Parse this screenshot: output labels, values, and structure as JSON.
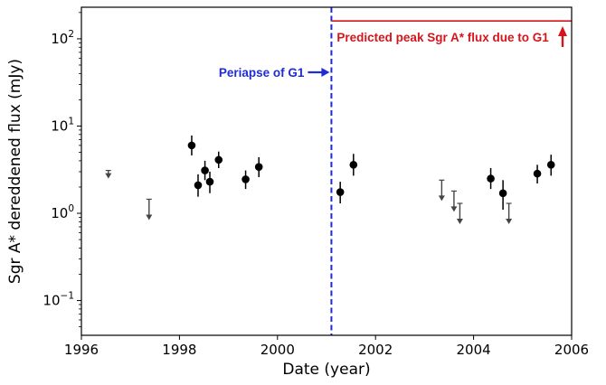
{
  "chart_data": {
    "type": "scatter",
    "xlabel": "Date (year)",
    "ylabel": "Sgr A* dereddened flux (mJy)",
    "xlim": [
      1996,
      2006
    ],
    "ylim": [
      0.04,
      230
    ],
    "yscale": "log",
    "xticks": [
      1996,
      1998,
      2000,
      2002,
      2004,
      2006
    ],
    "xtick_labels": [
      "1996",
      "1998",
      "2000",
      "2002",
      "2004",
      "2006"
    ],
    "yticks": [
      0.1,
      1,
      10,
      100
    ],
    "ytick_labels": [
      {
        "base": "10",
        "exp": "−1"
      },
      {
        "base": "10",
        "exp": "0"
      },
      {
        "base": "10",
        "exp": "1"
      },
      {
        "base": "10",
        "exp": "2"
      }
    ],
    "grid": false,
    "marker_color": "#000000",
    "limit_color": "#444444",
    "detections": [
      {
        "x": 1998.25,
        "y": 6.0,
        "lo": 4.6,
        "hi": 7.8
      },
      {
        "x": 1998.38,
        "y": 2.1,
        "lo": 1.55,
        "hi": 2.8
      },
      {
        "x": 1998.52,
        "y": 3.1,
        "lo": 2.4,
        "hi": 4.0
      },
      {
        "x": 1998.62,
        "y": 2.3,
        "lo": 1.7,
        "hi": 3.0
      },
      {
        "x": 1998.8,
        "y": 4.1,
        "lo": 3.3,
        "hi": 5.1
      },
      {
        "x": 1999.35,
        "y": 2.45,
        "lo": 1.9,
        "hi": 3.1
      },
      {
        "x": 1999.62,
        "y": 3.4,
        "lo": 2.6,
        "hi": 4.4
      },
      {
        "x": 2001.28,
        "y": 1.75,
        "lo": 1.3,
        "hi": 2.3
      },
      {
        "x": 2001.55,
        "y": 3.6,
        "lo": 2.7,
        "hi": 4.8
      },
      {
        "x": 2004.35,
        "y": 2.5,
        "lo": 1.9,
        "hi": 3.3
      },
      {
        "x": 2004.6,
        "y": 1.7,
        "lo": 1.1,
        "hi": 2.4
      },
      {
        "x": 2005.3,
        "y": 2.85,
        "lo": 2.2,
        "hi": 3.6
      },
      {
        "x": 2005.58,
        "y": 3.6,
        "lo": 2.7,
        "hi": 4.7
      }
    ],
    "upper_limits": [
      {
        "x": 1996.55,
        "y": 3.1
      },
      {
        "x": 1997.38,
        "y": 1.45
      },
      {
        "x": 2003.35,
        "y": 2.4
      },
      {
        "x": 2003.6,
        "y": 1.8
      },
      {
        "x": 2003.72,
        "y": 1.3
      },
      {
        "x": 2004.72,
        "y": 1.3
      }
    ],
    "annotations": {
      "periapse": {
        "label": "Periapse of G1",
        "x": 2001.1,
        "color": "#1f2bd6"
      },
      "predicted_peak": {
        "label": "Predicted peak Sgr A* flux due to G1",
        "y": 160,
        "x_start": 2001.1,
        "x_end": 2006,
        "color": "#d4161c"
      }
    }
  }
}
